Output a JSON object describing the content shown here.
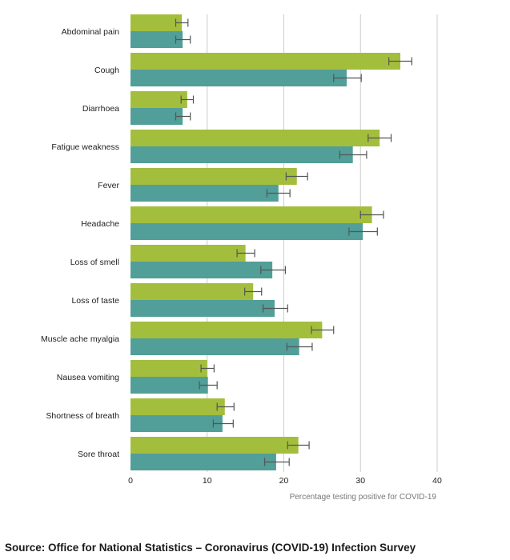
{
  "chart_data": {
    "type": "bar",
    "orientation": "horizontal",
    "categories": [
      "Abdominal pain",
      "Cough",
      "Diarrhoea",
      "Fatigue weakness",
      "Fever",
      "Headache",
      "Loss of smell",
      "Loss of taste",
      "Muscle ache myalgia",
      "Nausea vomiting",
      "Shortness of breath",
      "Sore throat"
    ],
    "series": [
      {
        "color": "#a3be3c",
        "values": [
          6.7,
          35.2,
          7.4,
          32.5,
          21.7,
          31.5,
          15.0,
          16.0,
          25.0,
          10.0,
          12.3,
          21.9
        ],
        "errors": [
          [
            5.9,
            7.5
          ],
          [
            33.7,
            36.7
          ],
          [
            6.6,
            8.2
          ],
          [
            31.0,
            34.0
          ],
          [
            20.3,
            23.1
          ],
          [
            30.0,
            33.0
          ],
          [
            13.9,
            16.2
          ],
          [
            14.9,
            17.1
          ],
          [
            23.6,
            26.5
          ],
          [
            9.2,
            10.9
          ],
          [
            11.3,
            13.5
          ],
          [
            20.5,
            23.3
          ]
        ]
      },
      {
        "color": "#529e98",
        "values": [
          6.8,
          28.2,
          6.8,
          29.0,
          19.3,
          30.3,
          18.5,
          18.8,
          22.0,
          10.1,
          12.0,
          19.0
        ],
        "errors": [
          [
            5.9,
            7.8
          ],
          [
            26.5,
            30.1
          ],
          [
            5.9,
            7.8
          ],
          [
            27.3,
            30.8
          ],
          [
            17.8,
            20.8
          ],
          [
            28.5,
            32.2
          ],
          [
            17.0,
            20.2
          ],
          [
            17.3,
            20.5
          ],
          [
            20.4,
            23.7
          ],
          [
            9.0,
            11.3
          ],
          [
            10.8,
            13.4
          ],
          [
            17.5,
            20.7
          ]
        ]
      }
    ],
    "xlabel": "Percentage testing positive for COVID-19",
    "ylabel": "",
    "xlim": [
      0,
      40
    ],
    "xticks": [
      0,
      10,
      20,
      30,
      40
    ],
    "grid": "vertical",
    "errorbar_color": "#555555",
    "gridline_color": "#cccccc"
  },
  "source_note": "Source: Office for National Statistics – Coronavirus (COVID-19) Infection Survey"
}
